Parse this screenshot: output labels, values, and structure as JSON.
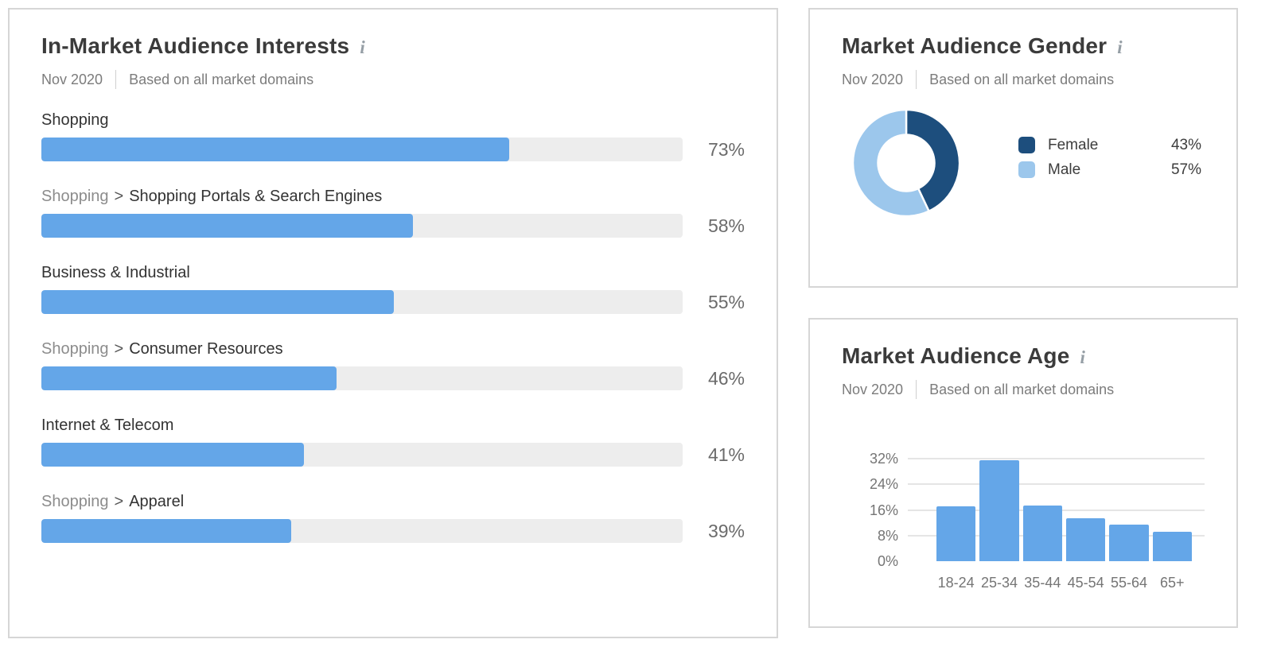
{
  "colors": {
    "bar_blue": "#64a6e8",
    "track_gray": "#ededed",
    "donut_female": "#1d4e7d",
    "donut_male": "#9cc7ec",
    "panel_border": "#d6d6d6",
    "gridline": "#e5e5e5",
    "title_text": "#3b3b3b",
    "muted_text": "#7c7c7c",
    "value_text": "#6b6b6b"
  },
  "panels": {
    "interests": {
      "title": "In-Market Audience Interests",
      "info_icon": "i",
      "date": "Nov 2020",
      "basis": "Based on all market domains",
      "separator": ">",
      "max_value": 100,
      "rows": [
        {
          "prefix": null,
          "label": "Shopping",
          "value": 73,
          "value_label": "73%"
        },
        {
          "prefix": "Shopping",
          "label": "Shopping Portals & Search Engines",
          "value": 58,
          "value_label": "58%"
        },
        {
          "prefix": null,
          "label": "Business & Industrial",
          "value": 55,
          "value_label": "55%"
        },
        {
          "prefix": "Shopping",
          "label": "Consumer Resources",
          "value": 46,
          "value_label": "46%"
        },
        {
          "prefix": null,
          "label": "Internet & Telecom",
          "value": 41,
          "value_label": "41%"
        },
        {
          "prefix": "Shopping",
          "label": "Apparel",
          "value": 39,
          "value_label": "39%"
        }
      ]
    },
    "gender": {
      "title": "Market Audience Gender",
      "info_icon": "i",
      "date": "Nov 2020",
      "basis": "Based on all market domains",
      "legend": [
        {
          "label": "Female",
          "value": 43,
          "value_label": "43%",
          "color": "#1d4e7d"
        },
        {
          "label": "Male",
          "value": 57,
          "value_label": "57%",
          "color": "#9cc7ec"
        }
      ]
    },
    "age": {
      "title": "Market Audience Age",
      "info_icon": "i",
      "date": "Nov 2020",
      "basis": "Based on all market domains",
      "ymax": 32,
      "y_ticks": [
        {
          "label": "0%",
          "value": 0
        },
        {
          "label": "8%",
          "value": 8
        },
        {
          "label": "16%",
          "value": 16
        },
        {
          "label": "24%",
          "value": 24
        },
        {
          "label": "32%",
          "value": 32
        }
      ],
      "categories": [
        "18-24",
        "25-34",
        "35-44",
        "45-54",
        "55-64",
        "65+"
      ],
      "values": [
        17,
        31.5,
        17.3,
        13.5,
        11.5,
        9.3
      ]
    }
  },
  "chart_data": [
    {
      "type": "bar",
      "orientation": "horizontal",
      "title": "In-Market Audience Interests",
      "subtitle": "Nov 2020 | Based on all market domains",
      "categories": [
        "Shopping",
        "Shopping > Shopping Portals & Search Engines",
        "Business & Industrial",
        "Shopping > Consumer Resources",
        "Internet & Telecom",
        "Shopping > Apparel"
      ],
      "values": [
        73,
        58,
        55,
        46,
        41,
        39
      ],
      "unit": "%",
      "xlim": [
        0,
        100
      ],
      "grid": false,
      "bar_color": "#64a6e8",
      "track_color": "#ededed"
    },
    {
      "type": "pie",
      "subtype": "donut",
      "title": "Market Audience Gender",
      "subtitle": "Nov 2020 | Based on all market domains",
      "labels": [
        "Female",
        "Male"
      ],
      "values": [
        43,
        57
      ],
      "unit": "%",
      "colors": [
        "#1d4e7d",
        "#9cc7ec"
      ],
      "start_angle_deg_from_top": 0,
      "direction": "clockwise",
      "legend_position": "right"
    },
    {
      "type": "bar",
      "orientation": "vertical",
      "title": "Market Audience Age",
      "subtitle": "Nov 2020 | Based on all market domains",
      "categories": [
        "18-24",
        "25-34",
        "35-44",
        "45-54",
        "55-64",
        "65+"
      ],
      "values": [
        17,
        31.5,
        17.3,
        13.5,
        11.5,
        9.3
      ],
      "unit": "%",
      "ylim": [
        0,
        32
      ],
      "y_tick_labels": [
        "0%",
        "8%",
        "16%",
        "24%",
        "32%"
      ],
      "grid": true,
      "bar_color": "#64a6e8"
    }
  ]
}
